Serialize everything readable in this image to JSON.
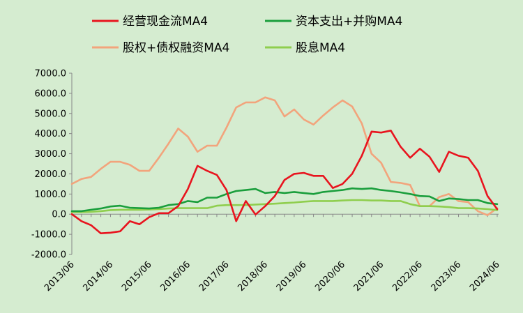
{
  "chart_data": {
    "type": "line",
    "title": "",
    "xlabel": "",
    "ylabel": "",
    "ylim": [
      -2000,
      7000
    ],
    "y_ticks": [
      "7000.0",
      "6000.0",
      "5000.0",
      "4000.0",
      "3000.0",
      "2000.0",
      "1000.0",
      "0.0",
      "-1000.0",
      "-2000.0"
    ],
    "y_tick_values": [
      7000,
      6000,
      5000,
      4000,
      3000,
      2000,
      1000,
      0,
      -1000,
      -2000
    ],
    "x_tick_labels": [
      "2013/06",
      "2014/06",
      "2015/06",
      "2016/06",
      "2017/06",
      "2018/06",
      "2019/06",
      "2020/06",
      "2021/06",
      "2022/06",
      "2023/06",
      "2024/06"
    ],
    "x": [
      "2013/06",
      "2013/09",
      "2013/12",
      "2014/03",
      "2014/06",
      "2014/09",
      "2014/12",
      "2015/03",
      "2015/06",
      "2015/09",
      "2015/12",
      "2016/03",
      "2016/06",
      "2016/09",
      "2016/12",
      "2017/03",
      "2017/06",
      "2017/09",
      "2017/12",
      "2018/03",
      "2018/06",
      "2018/09",
      "2018/12",
      "2019/03",
      "2019/06",
      "2019/09",
      "2019/12",
      "2020/03",
      "2020/06",
      "2020/09",
      "2020/12",
      "2021/03",
      "2021/06",
      "2021/09",
      "2021/12",
      "2022/03",
      "2022/06",
      "2022/09",
      "2022/12",
      "2023/03",
      "2023/06",
      "2023/09",
      "2023/12",
      "2024/03",
      "2024/06"
    ],
    "legend_position": "top",
    "grid": false,
    "series": [
      {
        "name": "经营现金流MA4",
        "color": "#e8141e",
        "values": [
          0,
          -350,
          -550,
          -950,
          -920,
          -850,
          -350,
          -500,
          -150,
          50,
          50,
          400,
          1250,
          2400,
          2150,
          1950,
          1200,
          -350,
          650,
          -20,
          400,
          900,
          1700,
          2000,
          2050,
          1900,
          1900,
          1300,
          1500,
          2000,
          2900,
          4100,
          4050,
          4150,
          3350,
          2800,
          3250,
          2850,
          2100,
          3100,
          2900,
          2800,
          2150,
          900,
          250
        ]
      },
      {
        "name": "资本支出+并购MA4",
        "color": "#1a9e3c",
        "values": [
          150,
          150,
          220,
          280,
          380,
          420,
          320,
          300,
          280,
          320,
          450,
          500,
          650,
          600,
          820,
          820,
          1000,
          1150,
          1200,
          1250,
          1050,
          1100,
          1050,
          1100,
          1050,
          1000,
          1100,
          1150,
          1200,
          1280,
          1250,
          1280,
          1200,
          1150,
          1080,
          1000,
          900,
          880,
          650,
          780,
          750,
          700,
          700,
          550,
          500
        ]
      },
      {
        "name": "股权+债权融资MA4",
        "color": "#f2a47c",
        "values": [
          1500,
          1750,
          1850,
          2250,
          2600,
          2600,
          2450,
          2150,
          2150,
          2800,
          3500,
          4250,
          3850,
          3100,
          3400,
          3400,
          4300,
          5300,
          5550,
          5550,
          5800,
          5650,
          4850,
          5200,
          4700,
          4450,
          4900,
          5300,
          5650,
          5350,
          4500,
          3000,
          2550,
          1600,
          1550,
          1450,
          400,
          400,
          850,
          1000,
          650,
          600,
          150,
          -50,
          300
        ]
      },
      {
        "name": "股息MA4",
        "color": "#8fce4e",
        "values": [
          100,
          100,
          120,
          150,
          200,
          220,
          220,
          220,
          230,
          250,
          280,
          300,
          300,
          300,
          300,
          420,
          450,
          450,
          450,
          480,
          500,
          520,
          550,
          580,
          620,
          650,
          650,
          650,
          680,
          700,
          700,
          680,
          680,
          650,
          650,
          500,
          400,
          400,
          380,
          350,
          300,
          300,
          280,
          250,
          200
        ]
      }
    ]
  }
}
